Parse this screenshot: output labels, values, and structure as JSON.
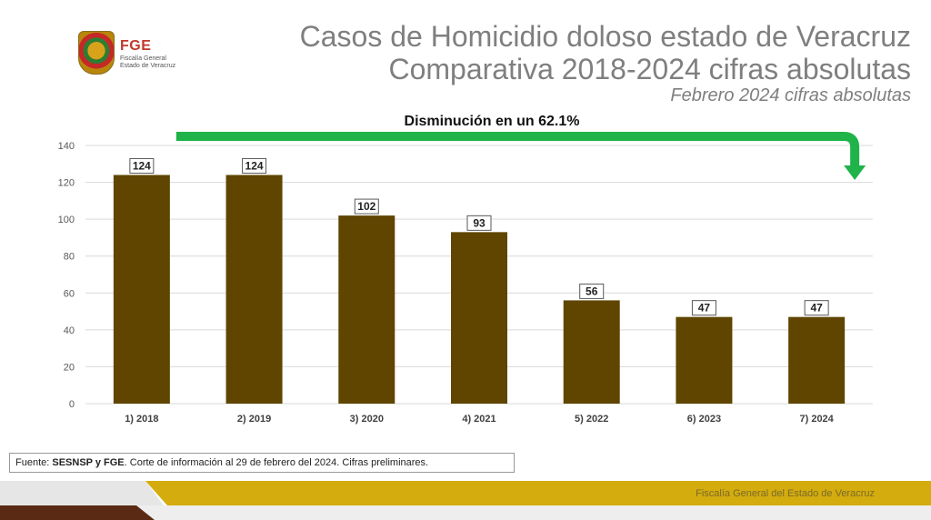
{
  "logo": {
    "name": "FGE",
    "subtitle_line1": "Fiscalía General",
    "subtitle_line2": "Estado de Veracruz",
    "icon": "state-shield-icon"
  },
  "header": {
    "title_line1": "Casos de Homicidio doloso estado de Veracruz",
    "title_line2": "Comparativa 2018-2024 cifras absolutas",
    "subtitle": "Febrero 2024 cifras absolutas"
  },
  "chart_data": {
    "type": "bar",
    "categories": [
      "1) 2018",
      "2) 2019",
      "3) 2020",
      "4) 2021",
      "5) 2022",
      "6) 2023",
      "7) 2024"
    ],
    "values": [
      124,
      124,
      102,
      93,
      56,
      47,
      47
    ],
    "ylim": [
      0,
      140
    ],
    "yticks": [
      0,
      20,
      40,
      60,
      80,
      100,
      120,
      140
    ],
    "grid": true,
    "bar_color": "#5f4500",
    "annotation": {
      "text": "Disminución en un 62.1%",
      "arrow_color": "#1fb34a",
      "from_category": "1) 2018",
      "to_category": "7) 2024"
    }
  },
  "source": {
    "prefix": "Fuente: ",
    "bold": "SESNSP y FGE",
    "rest": ". Corte de información al 29 de febrero del 2024. Cifras preliminares."
  },
  "footer": {
    "text": "Fiscalía General del Estado de Veracruz",
    "gold_color": "#d4ac0d",
    "brown_color": "#5b2a14"
  }
}
